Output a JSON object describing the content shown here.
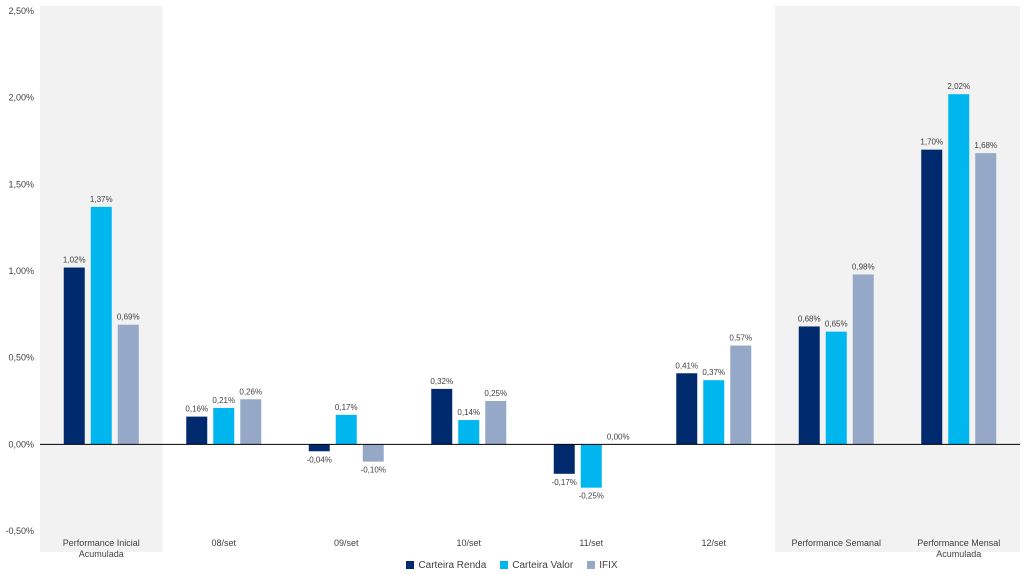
{
  "chart_data": {
    "type": "bar",
    "categories": [
      "Performance Inicial Acumulada",
      "08/set",
      "09/set",
      "10/set",
      "11/set",
      "12/set",
      "Performance Semanal",
      "Performance Mensal Acumulada"
    ],
    "highlighted_categories": [
      0,
      6,
      7
    ],
    "series": [
      {
        "name": "Carteira Renda",
        "color": "#002a6e",
        "values": [
          1.02,
          0.16,
          -0.04,
          0.32,
          -0.17,
          0.41,
          0.68,
          1.7
        ],
        "labels": [
          "1,02%",
          "0,16%",
          "-0,04%",
          "0,32%",
          "-0,17%",
          "0,41%",
          "0,68%",
          "1,70%"
        ]
      },
      {
        "name": "Carteira Valor",
        "color": "#00b6ee",
        "values": [
          1.37,
          0.21,
          0.17,
          0.14,
          -0.25,
          0.37,
          0.65,
          2.02
        ],
        "labels": [
          "1,37%",
          "0,21%",
          "0,17%",
          "0,14%",
          "-0,25%",
          "0,37%",
          "0,65%",
          "2,02%"
        ]
      },
      {
        "name": "IFIX",
        "color": "#95a8c8",
        "values": [
          0.69,
          0.26,
          -0.1,
          0.25,
          0.0,
          0.57,
          0.98,
          1.68
        ],
        "labels": [
          "0,69%",
          "0,26%",
          "-0,10%",
          "0,25%",
          "0,00%",
          "0,57%",
          "0,98%",
          "1,68%"
        ]
      }
    ],
    "ylim": [
      -0.5,
      2.5
    ],
    "yticks": [
      2.5,
      2.0,
      1.5,
      1.0,
      0.5,
      0.0,
      -0.5
    ],
    "ytick_labels": [
      "2,50%",
      "2,00%",
      "1,50%",
      "1,00%",
      "0,50%",
      "0,00%",
      "-0,50%"
    ],
    "highlight_color": "#f2f2f2",
    "legend_position": "bottom",
    "grid": false
  }
}
